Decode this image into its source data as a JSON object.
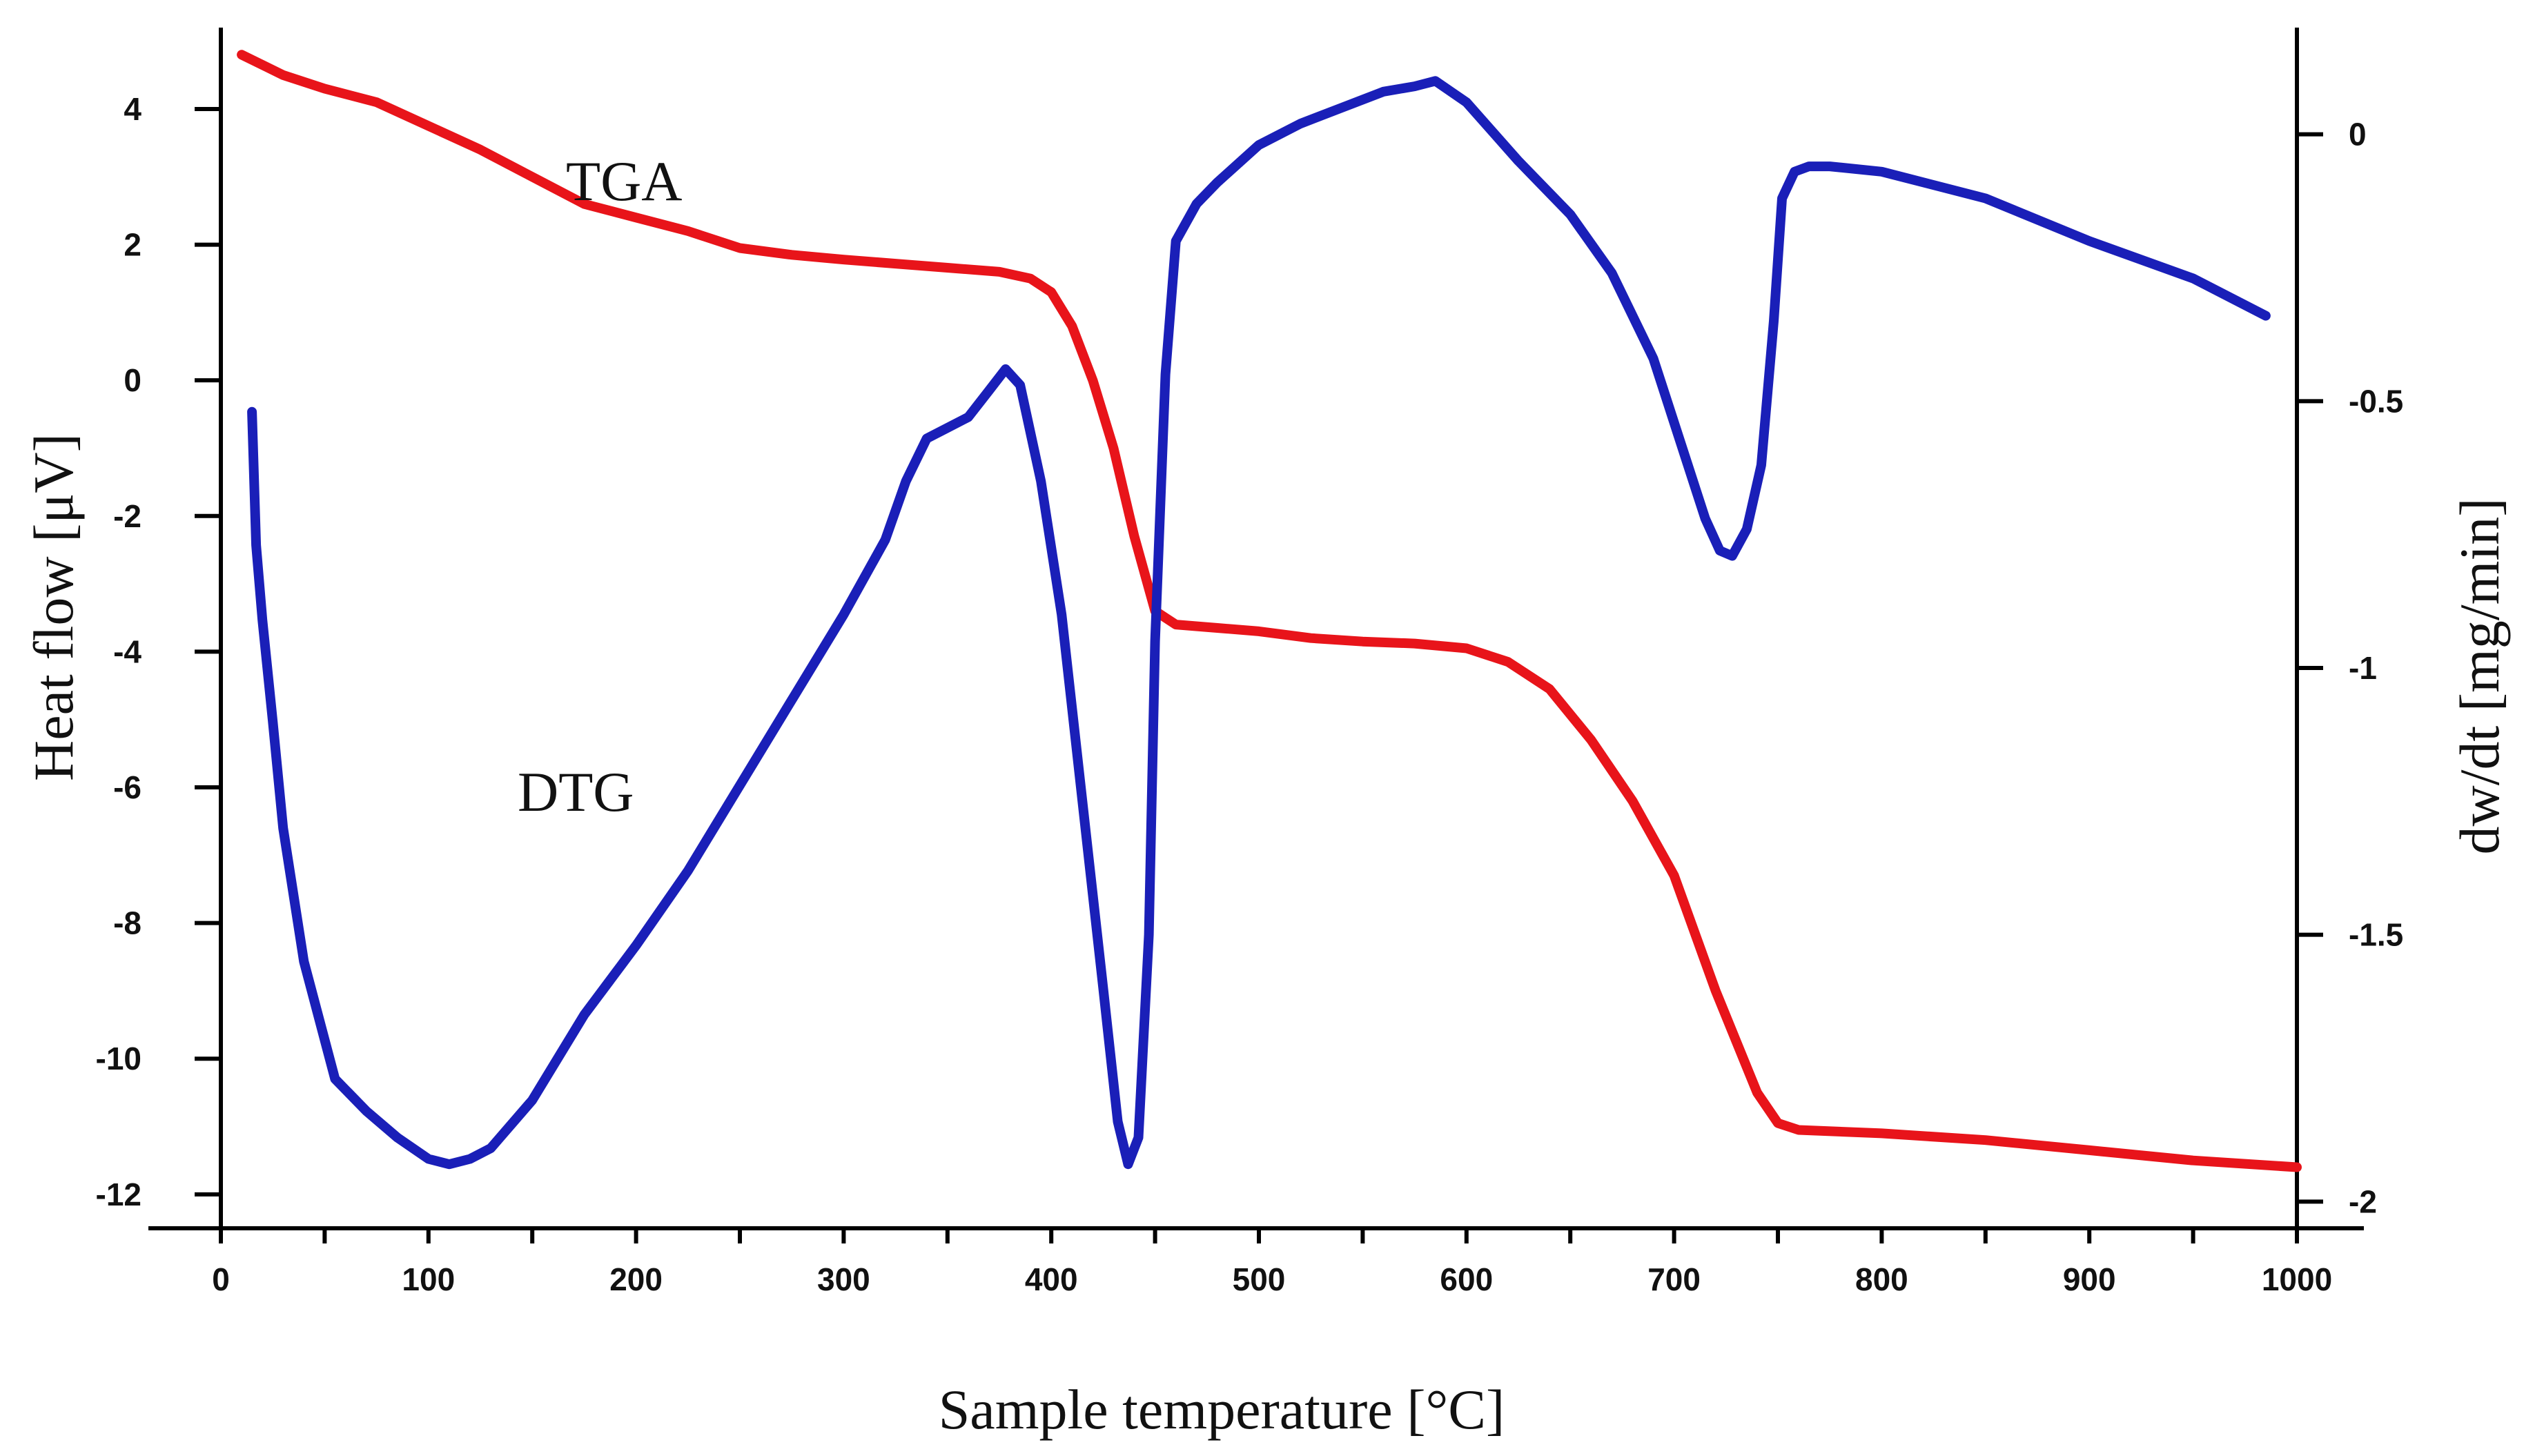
{
  "chart_data": {
    "type": "line",
    "title": "",
    "xlabel": "Sample temperature [°C]",
    "ylabel_left": "Heat flow [μV]",
    "ylabel_right": "dw/dt [mg/min]",
    "xlim": [
      0,
      1000
    ],
    "ylim_left": [
      -12.5,
      5.2
    ],
    "ylim_right": [
      -2.05,
      0.2
    ],
    "x_ticks": [
      0,
      100,
      200,
      300,
      400,
      500,
      600,
      700,
      800,
      900,
      1000
    ],
    "x_tick_labels": [
      "0",
      "100",
      "200",
      "300",
      "400",
      "500",
      "600",
      "700",
      "800",
      "900",
      "1000"
    ],
    "y_left_ticks": [
      4,
      2,
      0,
      -2,
      -4,
      -6,
      -8,
      -10,
      -12
    ],
    "y_left_tick_labels": [
      "4",
      "2",
      "0",
      "-2",
      "-4",
      "-6",
      "-8",
      "-10",
      "-12"
    ],
    "y_right_ticks": [
      0,
      -0.5,
      -1,
      -1.5,
      -2
    ],
    "y_right_tick_labels": [
      "0",
      "-0.5",
      "-1",
      "-1.5",
      "-2"
    ],
    "grid": false,
    "series": [
      {
        "name": "TGA",
        "label": "TGA",
        "color": "#e8141a",
        "axis": "left",
        "x": [
          10,
          30,
          50,
          75,
          100,
          125,
          150,
          175,
          200,
          225,
          250,
          275,
          300,
          325,
          350,
          375,
          390,
          400,
          410,
          420,
          430,
          440,
          450,
          460,
          480,
          500,
          525,
          550,
          575,
          600,
          620,
          640,
          660,
          680,
          700,
          720,
          740,
          750,
          760,
          800,
          850,
          900,
          950,
          1000
        ],
        "values": [
          4.8,
          4.5,
          4.3,
          4.1,
          3.75,
          3.4,
          3.0,
          2.6,
          2.4,
          2.2,
          1.95,
          1.85,
          1.78,
          1.72,
          1.66,
          1.6,
          1.5,
          1.3,
          0.8,
          0.0,
          -1.0,
          -2.3,
          -3.4,
          -3.6,
          -3.65,
          -3.7,
          -3.8,
          -3.85,
          -3.88,
          -3.95,
          -4.15,
          -4.55,
          -5.3,
          -6.2,
          -7.3,
          -9.0,
          -10.5,
          -10.95,
          -11.05,
          -11.1,
          -11.2,
          -11.35,
          -11.5,
          -11.6
        ]
      },
      {
        "name": "DTG",
        "label": "DTG",
        "color": "#1a1fb8",
        "axis": "right",
        "x": [
          15,
          17,
          20,
          25,
          30,
          40,
          55,
          70,
          85,
          100,
          110,
          120,
          130,
          150,
          175,
          200,
          225,
          250,
          275,
          300,
          320,
          330,
          340,
          350,
          360,
          370,
          378,
          385,
          395,
          405,
          415,
          425,
          432,
          437,
          442,
          447,
          450,
          455,
          460,
          470,
          480,
          500,
          520,
          540,
          560,
          575,
          585,
          600,
          625,
          650,
          670,
          690,
          705,
          715,
          722,
          728,
          735,
          742,
          748,
          752,
          758,
          765,
          775,
          800,
          850,
          900,
          950,
          985
        ],
        "values": [
          -0.52,
          -0.77,
          -0.91,
          -1.1,
          -1.3,
          -1.55,
          -1.77,
          -1.83,
          -1.88,
          -1.92,
          -1.93,
          -1.92,
          -1.9,
          -1.81,
          -1.65,
          -1.52,
          -1.38,
          -1.22,
          -1.06,
          -0.9,
          -0.76,
          -0.65,
          -0.57,
          -0.55,
          -0.53,
          -0.48,
          -0.44,
          -0.47,
          -0.65,
          -0.9,
          -1.25,
          -1.6,
          -1.85,
          -1.93,
          -1.88,
          -1.5,
          -0.95,
          -0.45,
          -0.2,
          -0.13,
          -0.09,
          -0.02,
          0.02,
          0.05,
          0.08,
          0.09,
          0.1,
          0.06,
          -0.05,
          -0.15,
          -0.26,
          -0.42,
          -0.6,
          -0.72,
          -0.78,
          -0.79,
          -0.74,
          -0.62,
          -0.35,
          -0.12,
          -0.07,
          -0.06,
          -0.06,
          -0.07,
          -0.12,
          -0.2,
          -0.27,
          -0.34
        ]
      }
    ],
    "annotations": [
      "TGA",
      "DTG"
    ]
  }
}
